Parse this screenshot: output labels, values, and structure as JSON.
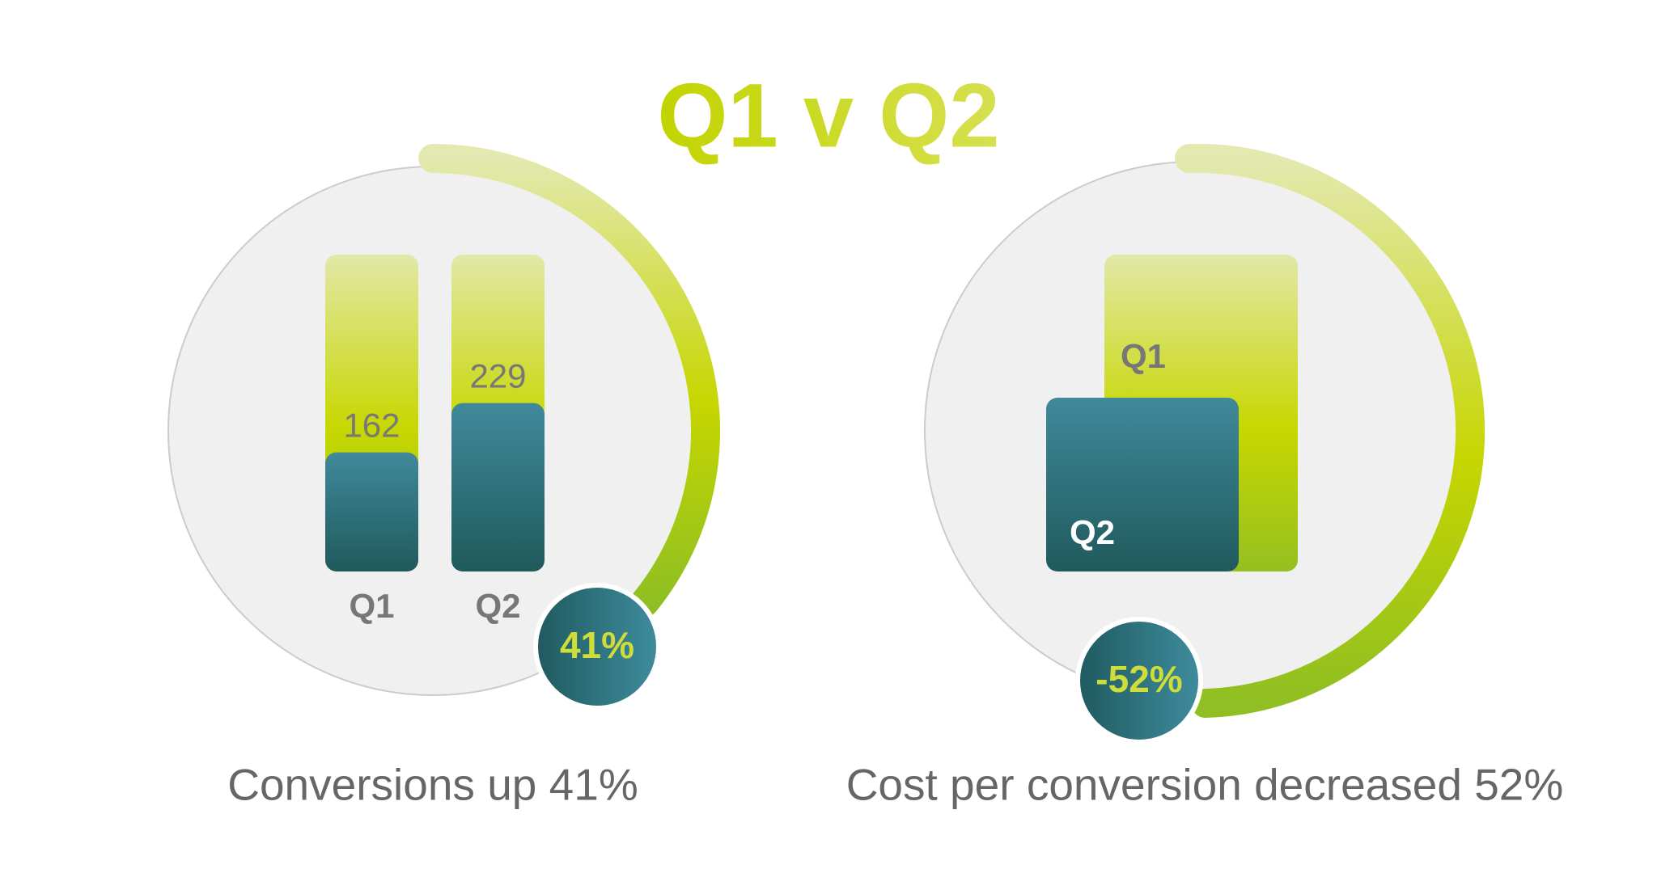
{
  "title": "Q1 v Q2",
  "panels": [
    {
      "bars": [
        {
          "label": "Q1",
          "value": 162
        },
        {
          "label": "Q2",
          "value": 229
        }
      ],
      "badge": "41%",
      "caption": "Conversions up 41%"
    },
    {
      "blocks": [
        {
          "label": "Q1"
        },
        {
          "label": "Q2"
        }
      ],
      "badge": "-52%",
      "caption": "Cost per conversion decreased 52%"
    }
  ]
}
